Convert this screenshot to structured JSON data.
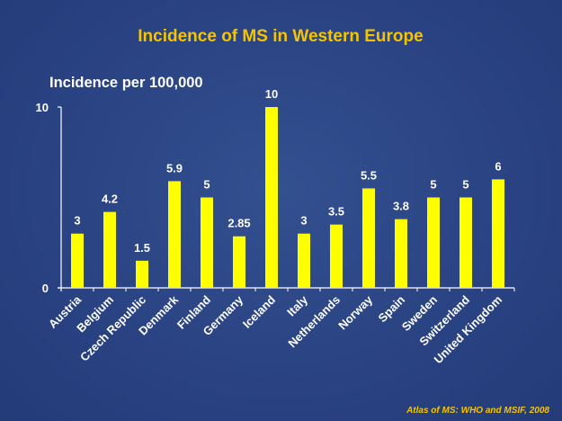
{
  "colors": {
    "background": "#2b4588",
    "title": "#f5c400",
    "bar": "#ffff00",
    "text": "#ffffff",
    "source": "#f5c400"
  },
  "chart_data": {
    "type": "bar",
    "title": "Incidence of MS in Western Europe",
    "ylabel": "Incidence per 100,000",
    "xlabel": "",
    "ylim": [
      0,
      10
    ],
    "yticks": [
      "0",
      "10"
    ],
    "grid": false,
    "categories": [
      "Austria",
      "Belgium",
      "Czech Republic",
      "Denmark",
      "Finland",
      "Germany",
      "Iceland",
      "Italy",
      "Netherlands",
      "Norway",
      "Spain",
      "Sweden",
      "Switzerland",
      "United Kingdom"
    ],
    "values": [
      3,
      4.2,
      1.5,
      5.9,
      5,
      2.85,
      10,
      3,
      3.5,
      5.5,
      3.8,
      5,
      5,
      6
    ],
    "value_labels": [
      "3",
      "4.2",
      "1.5",
      "5.9",
      "5",
      "2.85",
      "10",
      "3",
      "3.5",
      "5.5",
      "3.8",
      "5",
      "5",
      "6"
    ],
    "source": "Atlas of MS: WHO and MSIF, 2008"
  }
}
